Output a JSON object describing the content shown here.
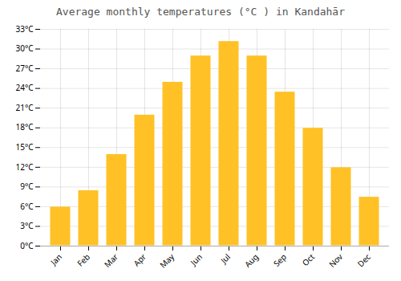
{
  "chart_data": {
    "type": "bar",
    "title": "Average monthly temperatures (°C ) in Kandahār",
    "categories": [
      "Jan",
      "Feb",
      "Mar",
      "Apr",
      "May",
      "Jun",
      "Jul",
      "Aug",
      "Sep",
      "Oct",
      "Nov",
      "Dec"
    ],
    "values": [
      6,
      8.5,
      14,
      20,
      25,
      29,
      31.2,
      29,
      23.5,
      18,
      12,
      7.5
    ],
    "color": "#FFC125",
    "ylim": [
      0,
      33
    ],
    "yticks": [
      {
        "value": 0,
        "label": "0°C"
      },
      {
        "value": 3,
        "label": "3°C"
      },
      {
        "value": 6,
        "label": "6°C"
      },
      {
        "value": 9,
        "label": "9°C"
      },
      {
        "value": 12,
        "label": "12°C"
      },
      {
        "value": 15,
        "label": "15°C"
      },
      {
        "value": 18,
        "label": "18°C"
      },
      {
        "value": 21,
        "label": "21°C"
      },
      {
        "value": 24,
        "label": "24°C"
      },
      {
        "value": 27,
        "label": "27°C"
      },
      {
        "value": 30,
        "label": "30°C"
      },
      {
        "value": 33,
        "label": "33°C"
      }
    ],
    "grid": true
  }
}
